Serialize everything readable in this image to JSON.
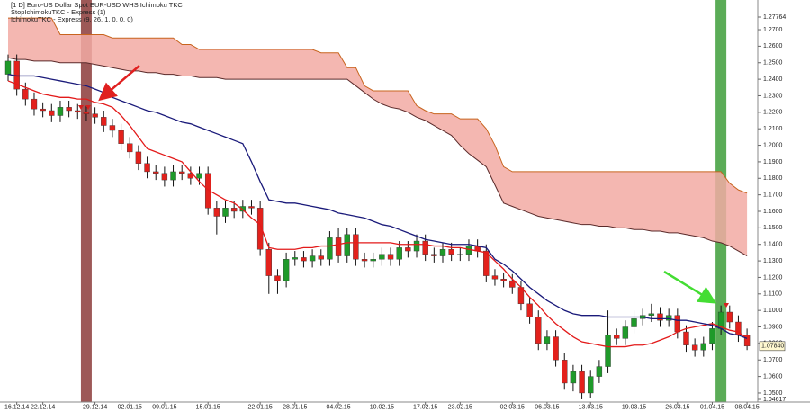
{
  "chart_data": {
    "type": "candlestick",
    "title": "[1 D] Euro-US Dollar Spot  EUR-USD WHS Ichimoku TKC",
    "indicators": [
      "StopIchimokuTKC - Express  (1)",
      "IchimokuTKC - Express  (9, 26, 1, 0, 0, 0)"
    ],
    "categories": [
      null,
      "16.12.14",
      null,
      null,
      "22.12.14",
      null,
      null,
      null,
      null,
      null,
      "29.12.14",
      null,
      null,
      null,
      "02.01.15",
      null,
      null,
      null,
      "09.01.15",
      null,
      null,
      null,
      null,
      "15.01.15",
      null,
      null,
      null,
      null,
      null,
      "22.01.15",
      null,
      null,
      null,
      "28.01.15",
      null,
      null,
      null,
      null,
      "04.02.15",
      null,
      null,
      null,
      null,
      "10.02.15",
      null,
      null,
      null,
      null,
      "17.02.15",
      null,
      null,
      null,
      "23.02.15",
      null,
      null,
      null,
      null,
      null,
      "02.03.15",
      null,
      null,
      null,
      "06.03.15",
      null,
      null,
      null,
      null,
      "13.03.15",
      null,
      null,
      null,
      null,
      "19.03.15",
      null,
      null,
      null,
      null,
      "26.03.15",
      null,
      null,
      null,
      "01.04.15",
      null,
      null,
      null,
      "08.04.15"
    ],
    "open": [
      1.243,
      1.251,
      1.234,
      1.228,
      1.222,
      1.221,
      1.218,
      1.223,
      1.221,
      1.22,
      1.219,
      1.217,
      1.212,
      1.209,
      1.201,
      1.196,
      1.189,
      1.184,
      1.183,
      1.179,
      1.184,
      1.183,
      1.18,
      1.183,
      1.162,
      1.157,
      1.162,
      1.16,
      1.163,
      1.162,
      1.137,
      1.121,
      1.118,
      1.131,
      1.132,
      1.13,
      1.133,
      1.131,
      1.144,
      1.133,
      1.146,
      1.131,
      1.13,
      1.131,
      1.134,
      1.131,
      1.138,
      1.136,
      1.142,
      1.134,
      1.133,
      1.137,
      1.134,
      1.134,
      1.139,
      1.136,
      1.121,
      1.119,
      1.118,
      1.114,
      1.104,
      1.096,
      1.08,
      1.084,
      1.07,
      1.056,
      1.063,
      1.05,
      1.06,
      1.066,
      1.085,
      1.083,
      1.09,
      1.095,
      1.097,
      1.098,
      1.094,
      1.097,
      1.087,
      1.079,
      1.076,
      1.08,
      1.089,
      1.099,
      1.093,
      1.085
    ],
    "high": [
      1.255,
      1.255,
      1.238,
      1.232,
      1.226,
      1.225,
      1.227,
      1.227,
      1.225,
      1.224,
      1.223,
      1.221,
      1.216,
      1.213,
      1.205,
      1.2,
      1.193,
      1.188,
      1.187,
      1.188,
      1.188,
      1.187,
      1.187,
      1.187,
      1.166,
      1.166,
      1.166,
      1.167,
      1.167,
      1.166,
      1.141,
      1.125,
      1.135,
      1.136,
      1.136,
      1.137,
      1.137,
      1.148,
      1.15,
      1.15,
      1.15,
      1.135,
      1.135,
      1.138,
      1.138,
      1.142,
      1.142,
      1.146,
      1.146,
      1.138,
      1.141,
      1.141,
      1.138,
      1.143,
      1.143,
      1.14,
      1.125,
      1.123,
      1.122,
      1.118,
      1.108,
      1.1,
      1.088,
      1.088,
      1.074,
      1.067,
      1.067,
      1.064,
      1.07,
      1.1,
      1.089,
      1.094,
      1.1,
      1.101,
      1.104,
      1.102,
      1.101,
      1.101,
      1.091,
      1.083,
      1.084,
      1.093,
      1.103,
      1.103,
      1.097,
      1.089
    ],
    "low": [
      1.239,
      1.23,
      1.224,
      1.218,
      1.217,
      1.214,
      1.214,
      1.217,
      1.216,
      1.215,
      1.213,
      1.208,
      1.205,
      1.197,
      1.192,
      1.185,
      1.18,
      1.179,
      1.175,
      1.175,
      1.179,
      1.176,
      1.176,
      1.158,
      1.146,
      1.153,
      1.156,
      1.156,
      1.158,
      1.133,
      1.11,
      1.11,
      1.114,
      1.127,
      1.126,
      1.126,
      1.127,
      1.127,
      1.129,
      1.129,
      1.127,
      1.126,
      1.126,
      1.127,
      1.127,
      1.127,
      1.132,
      1.132,
      1.13,
      1.129,
      1.129,
      1.13,
      1.13,
      1.13,
      1.132,
      1.117,
      1.115,
      1.114,
      1.11,
      1.1,
      1.092,
      1.076,
      1.076,
      1.066,
      1.052,
      1.051,
      1.0462,
      1.047,
      1.056,
      1.062,
      1.079,
      1.079,
      1.086,
      1.091,
      1.093,
      1.09,
      1.09,
      1.083,
      1.075,
      1.072,
      1.072,
      1.076,
      1.085,
      1.089,
      1.081,
      1.076
    ],
    "close": [
      1.251,
      1.234,
      1.228,
      1.222,
      1.221,
      1.218,
      1.223,
      1.221,
      1.22,
      1.219,
      1.217,
      1.212,
      1.209,
      1.201,
      1.196,
      1.189,
      1.184,
      1.183,
      1.179,
      1.184,
      1.183,
      1.18,
      1.183,
      1.162,
      1.157,
      1.162,
      1.16,
      1.163,
      1.162,
      1.137,
      1.121,
      1.118,
      1.131,
      1.132,
      1.13,
      1.133,
      1.131,
      1.144,
      1.133,
      1.146,
      1.131,
      1.13,
      1.131,
      1.134,
      1.131,
      1.138,
      1.136,
      1.142,
      1.134,
      1.133,
      1.137,
      1.134,
      1.134,
      1.139,
      1.136,
      1.121,
      1.119,
      1.118,
      1.114,
      1.104,
      1.096,
      1.08,
      1.084,
      1.07,
      1.056,
      1.063,
      1.05,
      1.06,
      1.066,
      1.085,
      1.083,
      1.09,
      1.095,
      1.097,
      1.098,
      1.094,
      1.097,
      1.087,
      1.079,
      1.076,
      1.08,
      1.089,
      1.099,
      1.093,
      1.085,
      1.0784
    ],
    "up_color": "#1f9a2a",
    "down_color": "#e3211c",
    "wick_color": "#111111",
    "overlays": [
      {
        "color": "#e31a1a",
        "values": [
          1.239,
          1.237,
          1.235,
          1.233,
          1.231,
          1.23,
          1.229,
          1.229,
          1.228,
          1.228,
          1.226,
          1.225,
          1.223,
          1.218,
          1.212,
          1.205,
          1.198,
          1.196,
          1.194,
          1.192,
          1.19,
          1.184,
          1.178,
          1.173,
          1.17,
          1.167,
          1.165,
          1.161,
          1.156,
          1.152,
          1.138,
          1.137,
          1.137,
          1.137,
          1.138,
          1.138,
          1.139,
          1.139,
          1.14,
          1.141,
          1.141,
          1.141,
          1.141,
          1.141,
          1.141,
          1.14,
          1.14,
          1.14,
          1.14,
          1.139,
          1.139,
          1.138,
          1.138,
          1.137,
          1.136,
          1.135,
          1.13,
          1.125,
          1.119,
          1.114,
          1.108,
          1.103,
          1.097,
          1.092,
          1.088,
          1.084,
          1.081,
          1.08,
          1.079,
          1.078,
          1.078,
          1.078,
          1.079,
          1.079,
          1.08,
          1.082,
          1.084,
          1.087,
          1.089,
          1.09,
          1.091,
          1.092,
          1.09,
          1.088,
          1.087,
          1.083
        ]
      },
      {
        "color": "#1a1a7a",
        "values": [
          1.243,
          1.242,
          1.242,
          1.242,
          1.241,
          1.24,
          1.239,
          1.238,
          1.237,
          1.236,
          1.234,
          1.232,
          1.229,
          1.227,
          1.225,
          1.223,
          1.221,
          1.22,
          1.218,
          1.216,
          1.214,
          1.213,
          1.211,
          1.209,
          1.207,
          1.205,
          1.203,
          1.201,
          1.19,
          1.178,
          1.167,
          1.166,
          1.165,
          1.165,
          1.164,
          1.163,
          1.162,
          1.161,
          1.159,
          1.158,
          1.157,
          1.156,
          1.154,
          1.152,
          1.151,
          1.149,
          1.147,
          1.145,
          1.143,
          1.142,
          1.141,
          1.14,
          1.14,
          1.14,
          1.139,
          1.138,
          1.131,
          1.128,
          1.124,
          1.119,
          1.114,
          1.11,
          1.106,
          1.103,
          1.1,
          1.098,
          1.097,
          1.097,
          1.097,
          1.096,
          1.096,
          1.096,
          1.096,
          1.096,
          1.095,
          1.095,
          1.095,
          1.094,
          1.094,
          1.093,
          1.092,
          1.091,
          1.089,
          1.086,
          1.085,
          1.083
        ]
      }
    ],
    "cloud": {
      "fill": "#f2aaa3",
      "upper": {
        "color": "#c8641e",
        "values": [
          1.277,
          1.277,
          1.277,
          1.277,
          1.277,
          1.277,
          1.267,
          1.267,
          1.267,
          1.267,
          1.267,
          1.267,
          1.265,
          1.265,
          1.265,
          1.265,
          1.265,
          1.265,
          1.265,
          1.265,
          1.261,
          1.261,
          1.258,
          1.258,
          1.258,
          1.258,
          1.258,
          1.258,
          1.258,
          1.258,
          1.258,
          1.258,
          1.258,
          1.258,
          1.258,
          1.258,
          1.256,
          1.256,
          1.256,
          1.247,
          1.247,
          1.236,
          1.233,
          1.233,
          1.233,
          1.233,
          1.233,
          1.224,
          1.221,
          1.219,
          1.219,
          1.219,
          1.216,
          1.216,
          1.216,
          1.21,
          1.2,
          1.187,
          1.184,
          1.184,
          1.184,
          1.184,
          1.184,
          1.184,
          1.184,
          1.184,
          1.184,
          1.184,
          1.184,
          1.184,
          1.184,
          1.184,
          1.184,
          1.184,
          1.184,
          1.184,
          1.184,
          1.184,
          1.184,
          1.184,
          1.184,
          1.184,
          1.184,
          1.177,
          1.173,
          1.171
        ]
      },
      "lower": {
        "color": "#5a2a2a",
        "values": [
          1.253,
          1.252,
          1.252,
          1.251,
          1.251,
          1.251,
          1.25,
          1.25,
          1.25,
          1.25,
          1.249,
          1.248,
          1.247,
          1.246,
          1.245,
          1.245,
          1.244,
          1.244,
          1.243,
          1.243,
          1.242,
          1.242,
          1.241,
          1.241,
          1.241,
          1.24,
          1.24,
          1.24,
          1.24,
          1.24,
          1.24,
          1.24,
          1.24,
          1.24,
          1.24,
          1.24,
          1.24,
          1.24,
          1.24,
          1.24,
          1.236,
          1.232,
          1.228,
          1.225,
          1.223,
          1.222,
          1.22,
          1.217,
          1.215,
          1.212,
          1.209,
          1.206,
          1.2,
          1.195,
          1.191,
          1.187,
          1.176,
          1.165,
          1.163,
          1.161,
          1.159,
          1.157,
          1.156,
          1.155,
          1.154,
          1.153,
          1.152,
          1.152,
          1.151,
          1.151,
          1.15,
          1.15,
          1.149,
          1.149,
          1.148,
          1.148,
          1.147,
          1.147,
          1.146,
          1.145,
          1.144,
          1.142,
          1.141,
          1.139,
          1.136,
          1.133
        ]
      }
    },
    "highlights": [
      {
        "index": 9,
        "color": "#8c3b3a"
      },
      {
        "index": 82,
        "color": "#3e9e3a"
      }
    ],
    "last_price": {
      "value": 1.0784,
      "label": "1.07840"
    },
    "ylim": [
      1.04617,
      1.27764
    ],
    "yticks": [
      {
        "value": 1.04617,
        "label": "1.04617"
      },
      {
        "value": 1.05,
        "label": "1.0500"
      },
      {
        "value": 1.06,
        "label": "1.0600"
      },
      {
        "value": 1.07,
        "label": "1.0700"
      },
      {
        "value": 1.08,
        "label": "1.0800"
      },
      {
        "value": 1.09,
        "label": "1.0900"
      },
      {
        "value": 1.1,
        "label": "1.1000"
      },
      {
        "value": 1.11,
        "label": "1.1100"
      },
      {
        "value": 1.12,
        "label": "1.1200"
      },
      {
        "value": 1.13,
        "label": "1.1300"
      },
      {
        "value": 1.14,
        "label": "1.1400"
      },
      {
        "value": 1.15,
        "label": "1.1500"
      },
      {
        "value": 1.16,
        "label": "1.1600"
      },
      {
        "value": 1.17,
        "label": "1.1700"
      },
      {
        "value": 1.18,
        "label": "1.1800"
      },
      {
        "value": 1.19,
        "label": "1.1900"
      },
      {
        "value": 1.2,
        "label": "1.2000"
      },
      {
        "value": 1.21,
        "label": "1.2100"
      },
      {
        "value": 1.22,
        "label": "1.2200"
      },
      {
        "value": 1.23,
        "label": "1.2300"
      },
      {
        "value": 1.24,
        "label": "1.2400"
      },
      {
        "value": 1.25,
        "label": "1.2500"
      },
      {
        "value": 1.26,
        "label": "1.2600"
      },
      {
        "value": 1.27,
        "label": "1.2700"
      },
      {
        "value": 1.27764,
        "label": "1.27764"
      }
    ]
  }
}
